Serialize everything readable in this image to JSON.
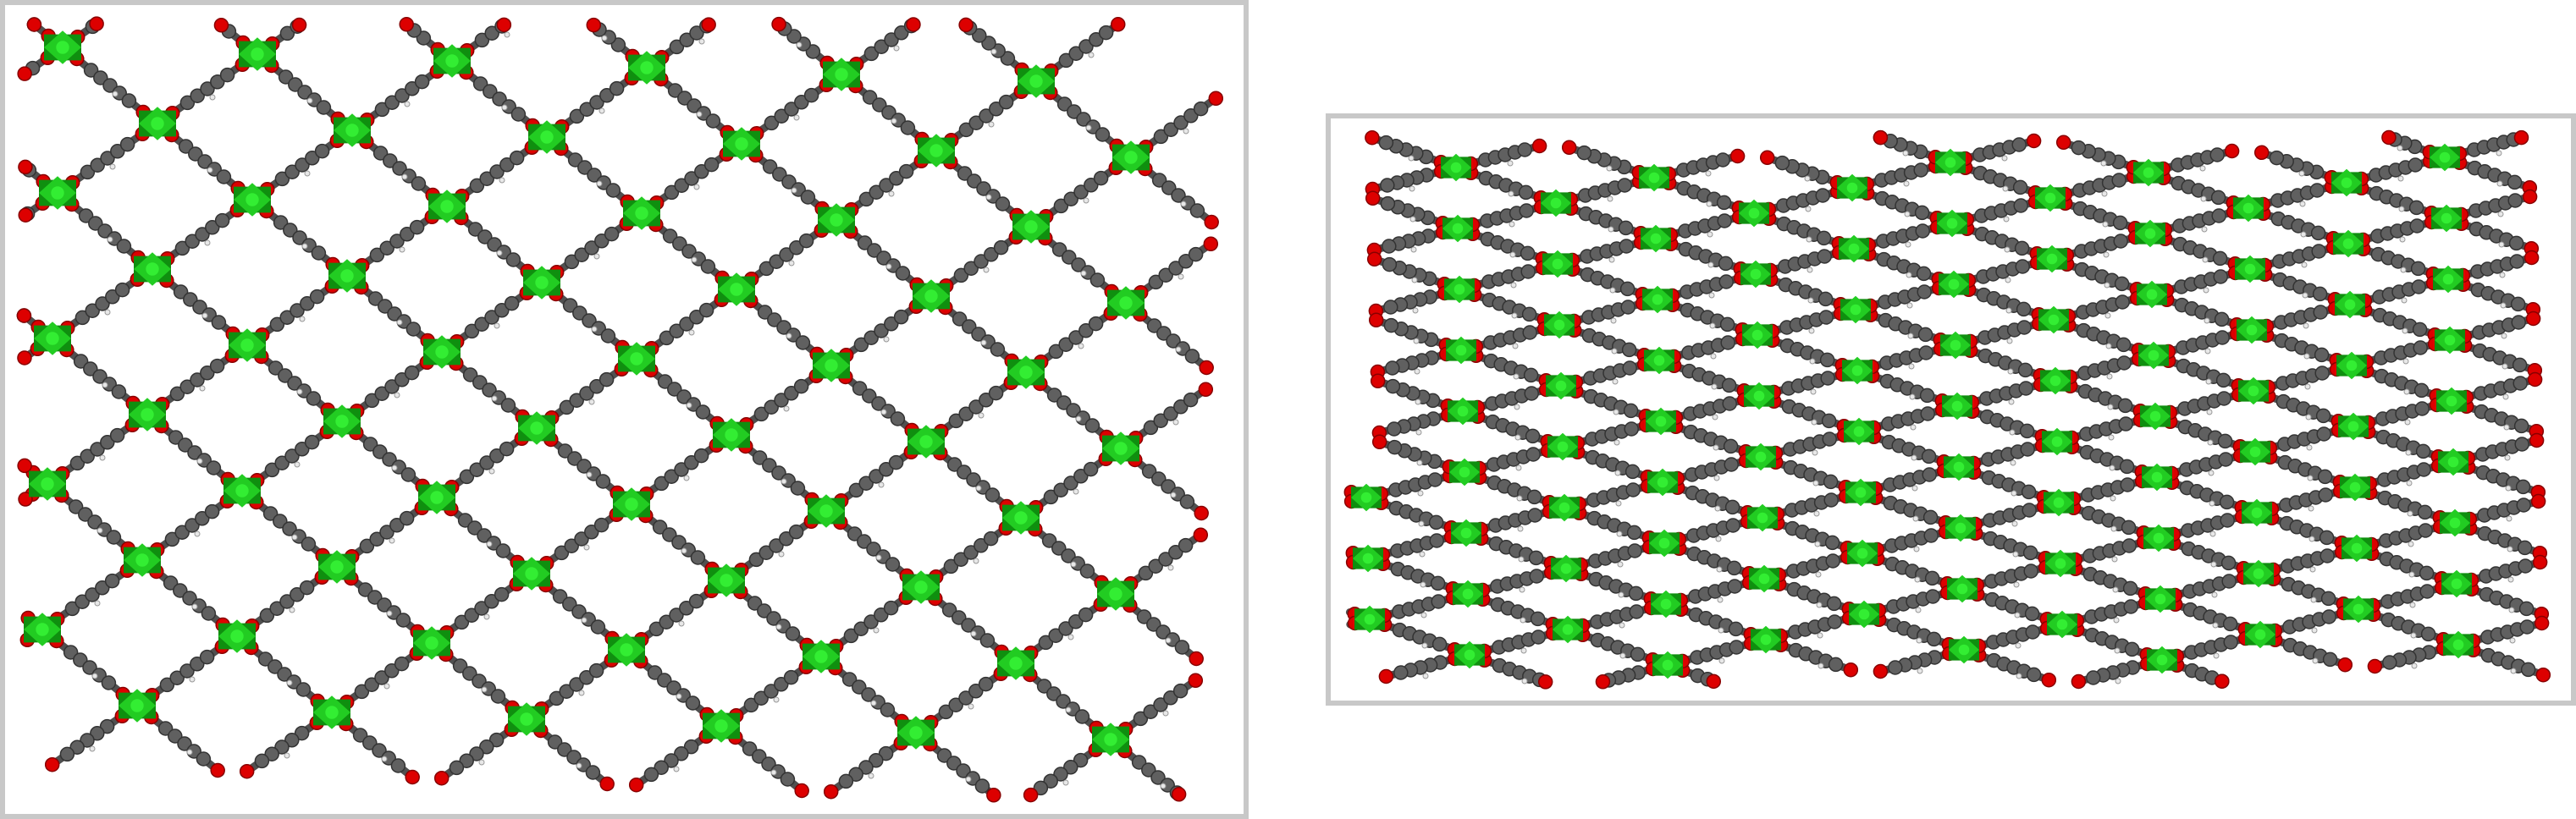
{
  "colors": {
    "metal_node": "#22cc22",
    "metal_node_dark": "#0f8f0f",
    "carbon_linker": "#505050",
    "oxygen": "#dd0000",
    "hydrogen": "#e8e8e8",
    "frame_border": "#c8c8c8"
  },
  "panels": [
    {
      "id": "left",
      "view": "framework-lattice"
    },
    {
      "id": "right",
      "view": "framework-lattice-tilted"
    }
  ]
}
